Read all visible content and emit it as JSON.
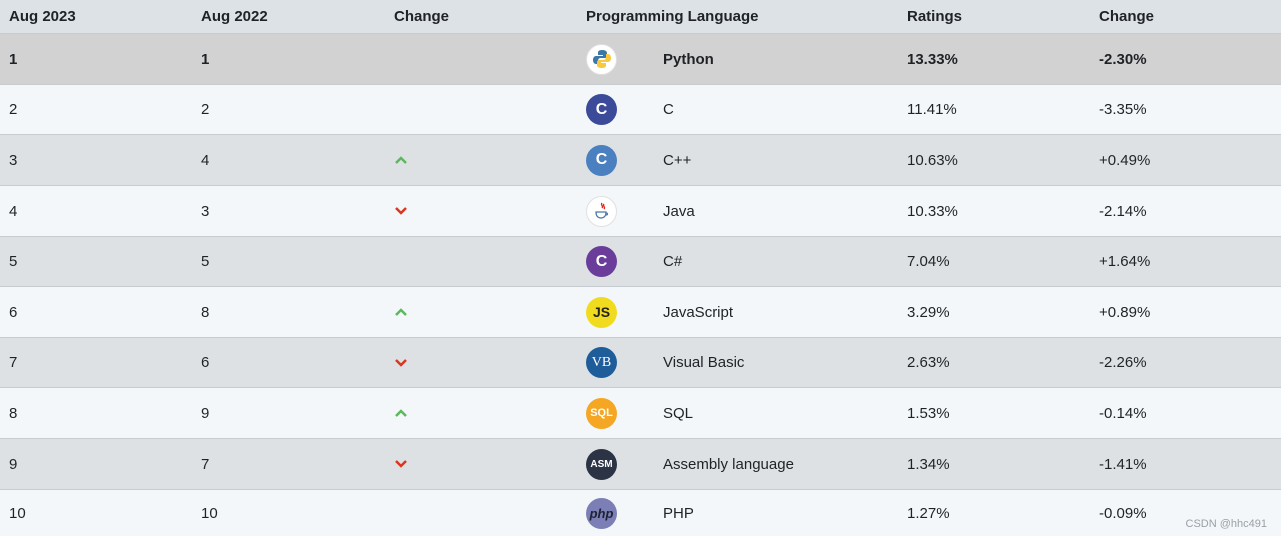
{
  "header": {
    "col1": "Aug 2023",
    "col2": "Aug 2022",
    "col3": "Change",
    "col4": "Programming Language",
    "col5": "Ratings",
    "col6": "Change"
  },
  "rows": [
    {
      "rank2023": "1",
      "rank2022": "1",
      "trend": "none",
      "logo": "python-icon",
      "language": "Python",
      "rating": "13.33%",
      "change": "-2.30%"
    },
    {
      "rank2023": "2",
      "rank2022": "2",
      "trend": "none",
      "logo": "c-icon",
      "language": "C",
      "rating": "11.41%",
      "change": "-3.35%"
    },
    {
      "rank2023": "3",
      "rank2022": "4",
      "trend": "up",
      "logo": "cpp-icon",
      "language": "C++",
      "rating": "10.63%",
      "change": "+0.49%"
    },
    {
      "rank2023": "4",
      "rank2022": "3",
      "trend": "down",
      "logo": "java-icon",
      "language": "Java",
      "rating": "10.33%",
      "change": "-2.14%"
    },
    {
      "rank2023": "5",
      "rank2022": "5",
      "trend": "none",
      "logo": "csharp-icon",
      "language": "C#",
      "rating": "7.04%",
      "change": "+1.64%"
    },
    {
      "rank2023": "6",
      "rank2022": "8",
      "trend": "up",
      "logo": "javascript-icon",
      "language": "JavaScript",
      "rating": "3.29%",
      "change": "+0.89%"
    },
    {
      "rank2023": "7",
      "rank2022": "6",
      "trend": "down",
      "logo": "visual-basic-icon",
      "language": "Visual Basic",
      "rating": "2.63%",
      "change": "-2.26%"
    },
    {
      "rank2023": "8",
      "rank2022": "9",
      "trend": "up",
      "logo": "sql-icon",
      "language": "SQL",
      "rating": "1.53%",
      "change": "-0.14%"
    },
    {
      "rank2023": "9",
      "rank2022": "7",
      "trend": "down",
      "logo": "assembly-icon",
      "language": "Assembly language",
      "rating": "1.34%",
      "change": "-1.41%"
    },
    {
      "rank2023": "10",
      "rank2022": "10",
      "trend": "none",
      "logo": "php-icon",
      "language": "PHP",
      "rating": "1.27%",
      "change": "-0.09%"
    }
  ],
  "logo_text": {
    "c": "C",
    "cpp": "C",
    "csharp": "C",
    "javascript": "JS",
    "visual_basic": "VB",
    "sql": "SQL",
    "assembly": "ASM",
    "php": "php"
  },
  "colors": {
    "up": "#5cb85c",
    "down": "#d9381e"
  },
  "watermark": "CSDN @hhc491"
}
